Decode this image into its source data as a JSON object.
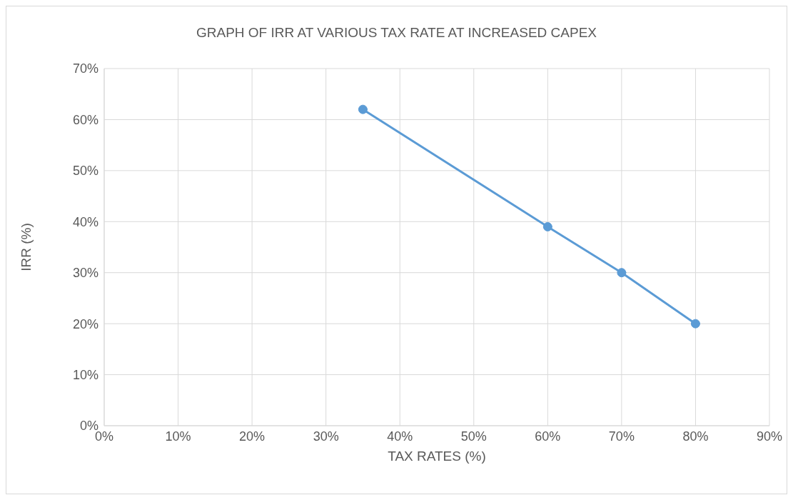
{
  "chart_data": {
    "type": "line",
    "title": "GRAPH OF IRR AT VARIOUS TAX RATE AT INCREASED CAPEX",
    "xlabel": "TAX RATES (%)",
    "ylabel": "IRR (%)",
    "x": [
      35,
      60,
      70,
      80
    ],
    "series": [
      {
        "color": "#5b9bd5",
        "values": [
          62,
          39,
          30,
          20
        ]
      }
    ],
    "xlim": [
      0,
      90
    ],
    "xticks": [
      {
        "value": 0,
        "label": "0%"
      },
      {
        "value": 10,
        "label": "10%"
      },
      {
        "value": 20,
        "label": "20%"
      },
      {
        "value": 30,
        "label": "30%"
      },
      {
        "value": 40,
        "label": "40%"
      },
      {
        "value": 50,
        "label": "50%"
      },
      {
        "value": 60,
        "label": "60%"
      },
      {
        "value": 70,
        "label": "70%"
      },
      {
        "value": 80,
        "label": "80%"
      },
      {
        "value": 90,
        "label": "90%"
      }
    ],
    "ylim": [
      0,
      70
    ],
    "yticks": [
      {
        "value": 0,
        "label": "0%"
      },
      {
        "value": 10,
        "label": "10%"
      },
      {
        "value": 20,
        "label": "20%"
      },
      {
        "value": 30,
        "label": "30%"
      },
      {
        "value": 40,
        "label": "40%"
      },
      {
        "value": 50,
        "label": "50%"
      },
      {
        "value": 60,
        "label": "60%"
      },
      {
        "value": 70,
        "label": "70%"
      }
    ],
    "grid": true,
    "marker": "circle",
    "line_style": "solid"
  }
}
